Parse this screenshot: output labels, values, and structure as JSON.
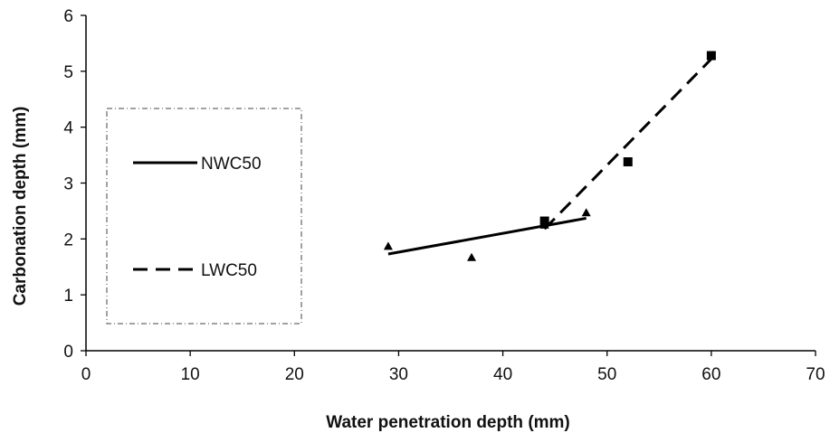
{
  "chart_data": {
    "type": "scatter",
    "title": "",
    "xlabel": "Water penetration depth (mm)",
    "ylabel": "Carbonation depth (mm)",
    "xlim": [
      0,
      70
    ],
    "ylim": [
      0,
      6
    ],
    "x_ticks": [
      "0",
      "10",
      "20",
      "30",
      "40",
      "50",
      "60",
      "70"
    ],
    "y_ticks": [
      "0",
      "1",
      "2",
      "3",
      "4",
      "5",
      "6"
    ],
    "grid": false,
    "legend_position": "left",
    "series": [
      {
        "name": "NWC50",
        "marker": "triangle",
        "line_style": "solid",
        "points": [
          [
            29,
            1.87
          ],
          [
            37,
            1.67
          ],
          [
            44,
            2.25
          ],
          [
            48,
            2.47
          ]
        ],
        "trendline": [
          [
            29,
            1.73
          ],
          [
            48,
            2.37
          ]
        ]
      },
      {
        "name": "LWC50",
        "marker": "square",
        "line_style": "dashed",
        "points": [
          [
            44,
            2.32
          ],
          [
            52,
            3.38
          ],
          [
            60,
            5.28
          ]
        ],
        "trendline": [
          [
            44,
            2.18
          ],
          [
            60,
            5.22
          ]
        ]
      }
    ]
  }
}
